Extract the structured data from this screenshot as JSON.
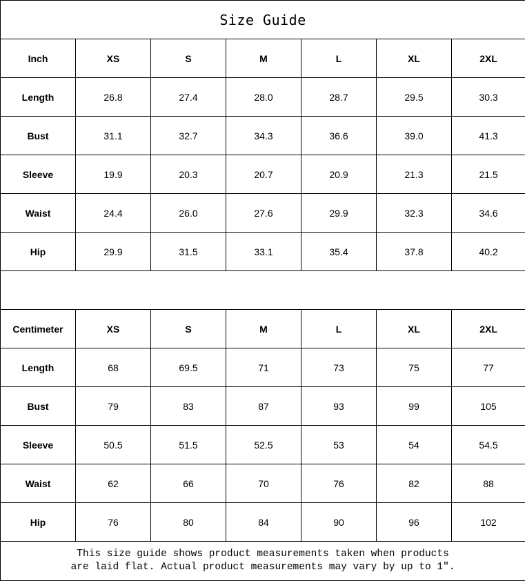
{
  "title": "Size Guide",
  "inch_table": {
    "unit_label": "Inch",
    "sizes": [
      "XS",
      "S",
      "M",
      "L",
      "XL",
      "2XL"
    ],
    "rows": [
      {
        "label": "Length",
        "values": [
          "26.8",
          "27.4",
          "28.0",
          "28.7",
          "29.5",
          "30.3"
        ]
      },
      {
        "label": "Bust",
        "values": [
          "31.1",
          "32.7",
          "34.3",
          "36.6",
          "39.0",
          "41.3"
        ]
      },
      {
        "label": "Sleeve",
        "values": [
          "19.9",
          "20.3",
          "20.7",
          "20.9",
          "21.3",
          "21.5"
        ]
      },
      {
        "label": "Waist",
        "values": [
          "24.4",
          "26.0",
          "27.6",
          "29.9",
          "32.3",
          "34.6"
        ]
      },
      {
        "label": "Hip",
        "values": [
          "29.9",
          "31.5",
          "33.1",
          "35.4",
          "37.8",
          "40.2"
        ]
      }
    ]
  },
  "cm_table": {
    "unit_label": "Centimeter",
    "sizes": [
      "XS",
      "S",
      "M",
      "L",
      "XL",
      "2XL"
    ],
    "rows": [
      {
        "label": "Length",
        "values": [
          "68",
          "69.5",
          "71",
          "73",
          "75",
          "77"
        ]
      },
      {
        "label": "Bust",
        "values": [
          "79",
          "83",
          "87",
          "93",
          "99",
          "105"
        ]
      },
      {
        "label": "Sleeve",
        "values": [
          "50.5",
          "51.5",
          "52.5",
          "53",
          "54",
          "54.5"
        ]
      },
      {
        "label": "Waist",
        "values": [
          "62",
          "66",
          "70",
          "76",
          "82",
          "88"
        ]
      },
      {
        "label": "Hip",
        "values": [
          "76",
          "80",
          "84",
          "90",
          "96",
          "102"
        ]
      }
    ]
  },
  "note": {
    "line1": "This size guide shows product measurements taken when products",
    "line2": "are laid flat. Actual product measurements may vary by up to 1″."
  }
}
